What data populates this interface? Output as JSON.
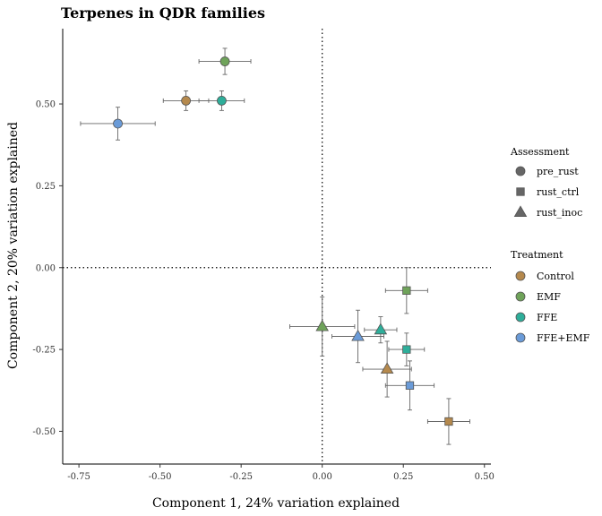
{
  "chart_data": {
    "type": "scatter",
    "title": "Terpenes in QDR families",
    "xlabel": "Component 1, 24% variation explained",
    "ylabel": "Component 2, 20% variation explained",
    "xlim": [
      -0.8,
      0.52
    ],
    "ylim": [
      -0.6,
      0.73
    ],
    "x_ticks": [
      -0.75,
      -0.5,
      -0.25,
      0.0,
      0.25,
      0.5
    ],
    "x_tick_labels": [
      "-0.75",
      "-0.50",
      "-0.25",
      "0.00",
      "0.25",
      "0.50"
    ],
    "y_ticks": [
      -0.5,
      -0.25,
      0.0,
      0.25,
      0.5
    ],
    "y_tick_labels": [
      "-0.50",
      "-0.25",
      "0.00",
      "0.25",
      "0.50"
    ],
    "reference_lines": {
      "x": 0,
      "y": 0,
      "style": "dotted"
    },
    "grid": false,
    "legends": [
      {
        "title": "Assessment",
        "entries": [
          {
            "label": "pre_rust",
            "shape": "circle"
          },
          {
            "label": "rust_ctrl",
            "shape": "square"
          },
          {
            "label": "rust_inoc",
            "shape": "triangle"
          }
        ]
      },
      {
        "title": "Treatment",
        "entries": [
          {
            "label": "Control",
            "color": "#B5894D"
          },
          {
            "label": "EMF",
            "color": "#6FA35A"
          },
          {
            "label": "FFE",
            "color": "#2EAE9A"
          },
          {
            "label": "FFE+EMF",
            "color": "#6A9BD8"
          }
        ]
      }
    ],
    "legend_placement": "right",
    "points": [
      {
        "assessment": "pre_rust",
        "treatment": "EMF",
        "x": -0.3,
        "y": 0.63,
        "xerr": 0.08,
        "yerr": 0.04
      },
      {
        "assessment": "pre_rust",
        "treatment": "Control",
        "x": -0.42,
        "y": 0.51,
        "xerr": 0.07,
        "yerr": 0.03
      },
      {
        "assessment": "pre_rust",
        "treatment": "FFE",
        "x": -0.31,
        "y": 0.51,
        "xerr": 0.07,
        "yerr": 0.03
      },
      {
        "assessment": "pre_rust",
        "treatment": "FFE+EMF",
        "x": -0.63,
        "y": 0.44,
        "xerr": 0.115,
        "yerr": 0.05
      },
      {
        "assessment": "rust_ctrl",
        "treatment": "EMF",
        "x": 0.26,
        "y": -0.07,
        "xerr": 0.065,
        "yerr": 0.07
      },
      {
        "assessment": "rust_ctrl",
        "treatment": "FFE",
        "x": 0.26,
        "y": -0.25,
        "xerr": 0.055,
        "yerr": 0.05
      },
      {
        "assessment": "rust_ctrl",
        "treatment": "FFE+EMF",
        "x": 0.27,
        "y": -0.36,
        "xerr": 0.075,
        "yerr": 0.075
      },
      {
        "assessment": "rust_ctrl",
        "treatment": "Control",
        "x": 0.39,
        "y": -0.47,
        "xerr": 0.065,
        "yerr": 0.07
      },
      {
        "assessment": "rust_inoc",
        "treatment": "EMF",
        "x": 0.0,
        "y": -0.18,
        "xerr": 0.1,
        "yerr": 0.09
      },
      {
        "assessment": "rust_inoc",
        "treatment": "FFE",
        "x": 0.18,
        "y": -0.19,
        "xerr": 0.05,
        "yerr": 0.04
      },
      {
        "assessment": "rust_inoc",
        "treatment": "FFE+EMF",
        "x": 0.11,
        "y": -0.21,
        "xerr": 0.08,
        "yerr": 0.08
      },
      {
        "assessment": "rust_inoc",
        "treatment": "Control",
        "x": 0.2,
        "y": -0.31,
        "xerr": 0.075,
        "yerr": 0.085
      }
    ]
  }
}
